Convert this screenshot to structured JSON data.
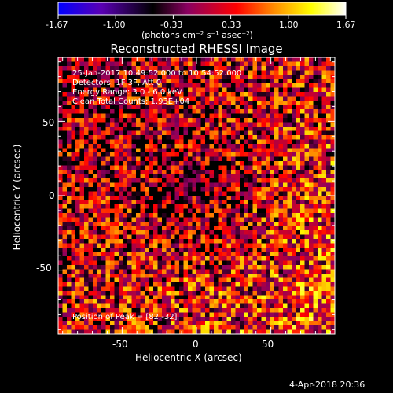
{
  "colorbar": {
    "ticks": [
      "-1.67",
      "-1.00",
      "-0.33",
      "0.33",
      "1.00",
      "1.67"
    ],
    "unit_label": "(photons cm⁻² s⁻¹ asec⁻²)",
    "colors": [
      "#0000ff",
      "#5a00b4",
      "#000000",
      "#8a0060",
      "#ff0000",
      "#ff8c00",
      "#ffff00",
      "#ffffff"
    ]
  },
  "chart_data": {
    "type": "heatmap",
    "title": "Reconstructed RHESSI Image",
    "xlabel": "Heliocentric X (arcsec)",
    "ylabel": "Heliocentric Y (arcsec)",
    "xlim": [
      -93,
      93
    ],
    "ylim": [
      -93,
      93
    ],
    "xticks": [
      -50,
      0,
      50
    ],
    "yticks": [
      50,
      0,
      -50
    ],
    "value_range": [
      -1.67,
      1.67
    ],
    "grid": false
  },
  "annotation": {
    "time_range": "25-Jan-2017 10:49:52.000 to 10:54:52.000",
    "detectors": "Detectors: 1F 3F, Att 0",
    "energy": "Energy Range: 3.0 - 6.0 keV",
    "clean": "Clean    Total Counts: 1.93E+04",
    "peak": "Position of Peak = [82,-32]"
  },
  "footer": {
    "date": "4-Apr-2018 20:36"
  }
}
